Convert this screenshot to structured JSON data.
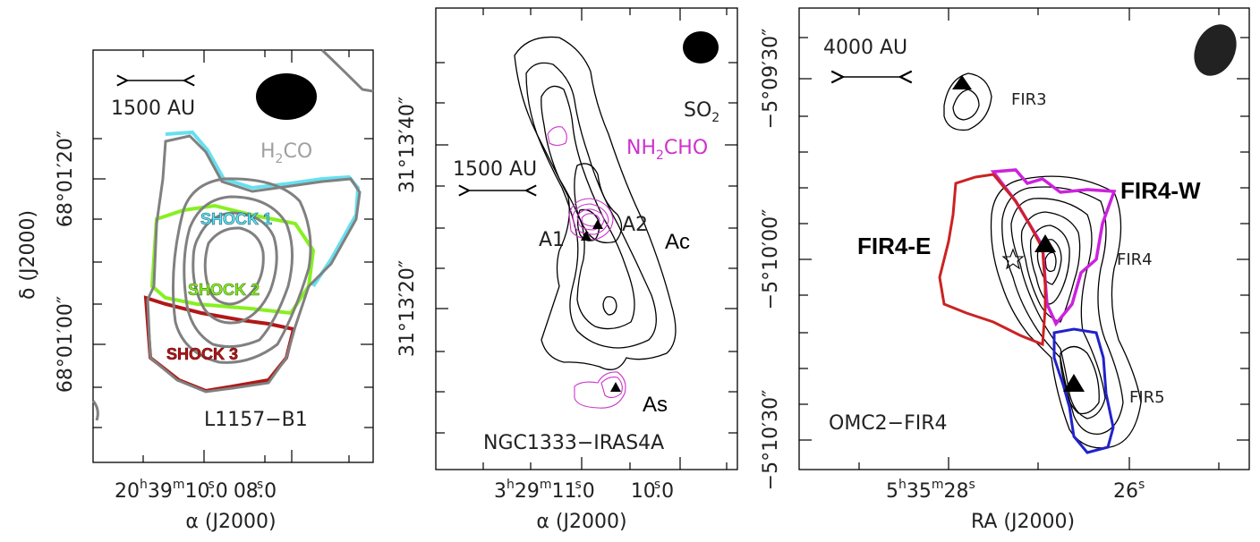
{
  "panel1": {
    "scale_bar": "1500 AU",
    "molecule": "H2CO",
    "mol_main": "H",
    "mol_sub": "2",
    "mol_rest": "CO",
    "shock1": "SHOCK 1",
    "shock2": "SHOCK 2",
    "shock3": "SHOCK 3",
    "source": "L1157−B1",
    "y_ticks": [
      "68°01′20″",
      "68°01′00″"
    ],
    "y_axis": "δ (J2000)",
    "x_ticks": [
      "20h39m10.s08.s0"
    ],
    "x_tick_main": "20",
    "x_tick_h": "h",
    "x_tick_39": "39",
    "x_tick_m": "m",
    "x_tick_10": "10",
    "x_tick_s1": "s",
    "x_tick_0a": ".0",
    "x_tick_08": "08",
    "x_tick_s2": "s",
    "x_tick_0b": ".0",
    "x_axis": "α (J2000)",
    "colors": {
      "shock1": "#66e0f0",
      "shock2": "#88f022",
      "shock3": "#b01818",
      "h2co": "#808080"
    }
  },
  "panel2": {
    "scale_bar": "1500 AU",
    "mol1_main": "SO",
    "mol1_sub": "2",
    "mol2_main": "NH",
    "mol2_sub": "2",
    "mol2_rest": "CHO",
    "a1": "A1",
    "a2": "A2",
    "ac": "Ac",
    "as": "As",
    "source": "NGC1333−IRAS4A",
    "y_tick1": "31°13′40″",
    "y_tick2": "31°13′20″",
    "x_tick_3": "3",
    "x_tick_h": "h",
    "x_tick_29": "29",
    "x_tick_m": "m",
    "x_tick_11": "11",
    "x_tick_s1": "s",
    "x_tick_0a": ".0",
    "x_tick_10": "10",
    "x_tick_s2": "s",
    "x_tick_0b": ".0",
    "x_axis": "α (J2000)",
    "colors": {
      "nh2cho": "#cc33cc"
    }
  },
  "panel3": {
    "scale_bar": "4000 AU",
    "fir3": "FIR3",
    "fir4": "FIR4",
    "fir5": "FIR5",
    "fir4w": "FIR4-W",
    "fir4e": "FIR4-E",
    "source": "OMC2−FIR4",
    "y_tick1": "−5°09′30″",
    "y_tick2": "−5°10′00″",
    "y_tick3": "−5°10′30″",
    "x_tick_5": "5",
    "x_tick_h": "h",
    "x_tick_35": "35",
    "x_tick_m": "m",
    "x_tick_28": "28",
    "x_tick_s1": "s",
    "x_tick_26": "26",
    "x_tick_s2": "s",
    "x_axis": "RA (J2000)",
    "colors": {
      "fir4w": "#cc22dd",
      "fir4e": "#cc2222",
      "fir5": "#2222cc"
    }
  }
}
